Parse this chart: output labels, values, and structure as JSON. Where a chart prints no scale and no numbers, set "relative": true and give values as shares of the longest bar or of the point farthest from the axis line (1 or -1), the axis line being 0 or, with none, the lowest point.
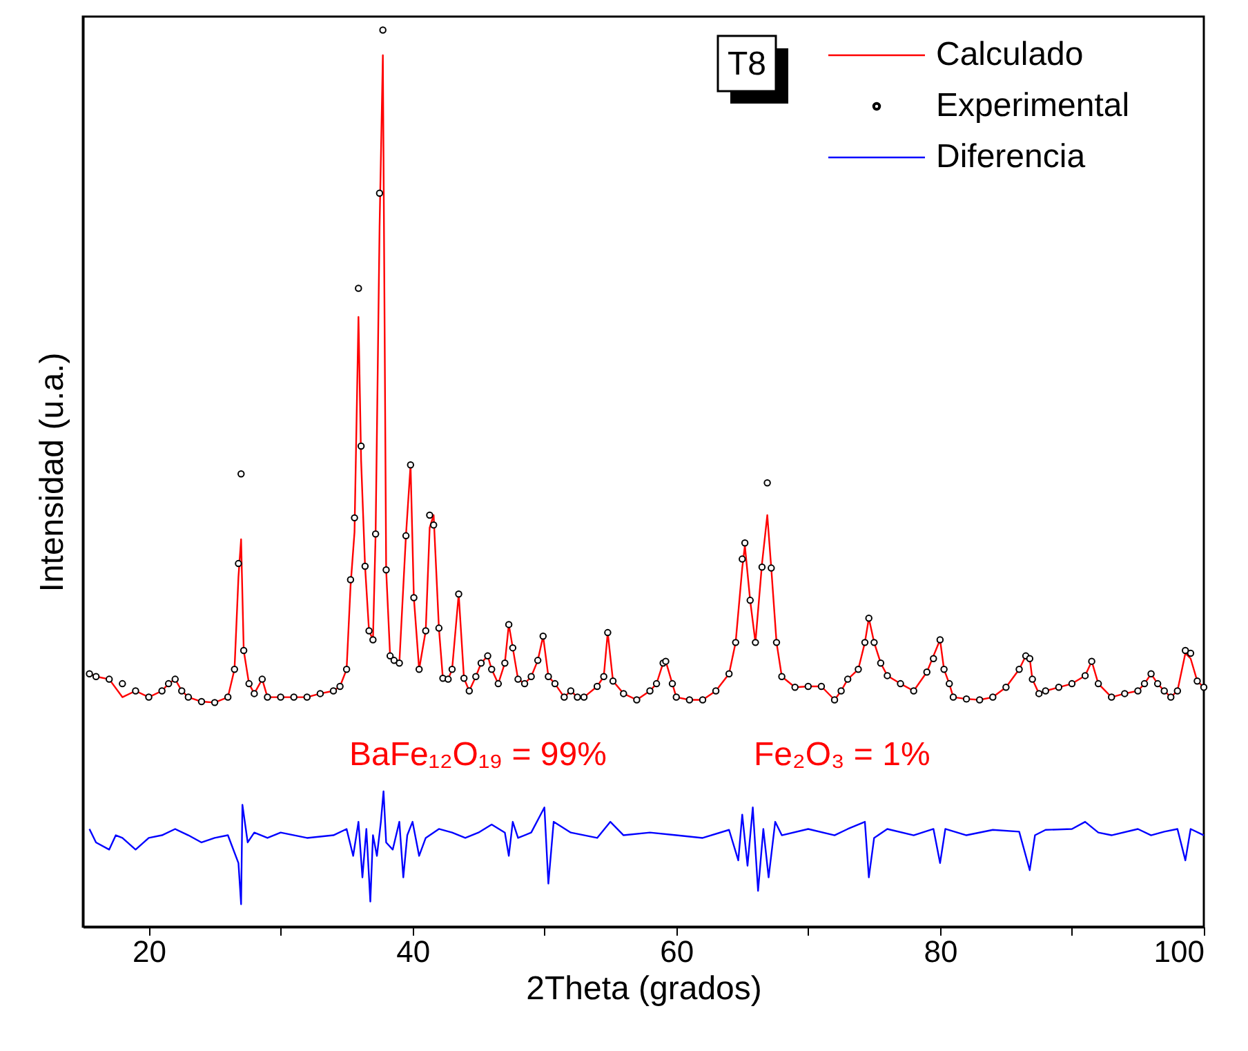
{
  "chart_data": {
    "type": "line",
    "relative": true,
    "xlabel": "2Theta (grados)",
    "ylabel": "Intensidad (u.a.)",
    "xlim": [
      15,
      100
    ],
    "xticks": [
      20,
      {
        "value": 30,
        "label": null
      },
      40,
      {
        "value": 50,
        "label": null
      },
      60,
      {
        "value": 70,
        "label": null
      },
      80,
      {
        "value": 90,
        "label": null
      },
      100
    ],
    "grid": false,
    "legend": "top right",
    "tick_labels": "x",
    "annotations": [
      "T8",
      "BaFe₁₂O₁₉ = 99%",
      "Fe₂O₃ = 1%"
    ],
    "series": [
      {
        "name": "Calculado",
        "type": "line",
        "color": "#ff0000",
        "x": [
          15.5,
          16,
          17,
          18,
          19,
          20,
          21,
          21.5,
          22,
          22.5,
          23,
          24,
          25,
          26,
          26.5,
          26.8,
          27,
          27.2,
          27.6,
          28,
          28.6,
          29,
          30,
          31,
          32,
          33,
          34,
          34.5,
          35,
          35.3,
          35.6,
          35.9,
          36.1,
          36.4,
          36.7,
          37,
          37.2,
          37.5,
          37.75,
          38,
          38.3,
          38.6,
          39,
          39.5,
          39.85,
          40.1,
          40.5,
          41,
          41.3,
          41.6,
          42,
          42.3,
          42.7,
          43,
          43.5,
          43.9,
          44.3,
          44.8,
          45.2,
          45.7,
          46,
          46.5,
          47,
          47.3,
          47.6,
          48,
          48.5,
          49,
          49.5,
          49.9,
          50.3,
          50.8,
          51.5,
          52,
          52.5,
          53,
          54,
          54.5,
          54.8,
          55.2,
          56,
          57,
          58,
          58.5,
          59,
          59.2,
          59.7,
          60,
          61,
          62,
          63,
          64,
          64.5,
          65,
          65.2,
          65.6,
          66,
          66.5,
          66.9,
          67.2,
          67.6,
          68,
          69,
          70,
          71,
          72,
          72.5,
          73,
          73.8,
          74.3,
          74.6,
          75,
          75.5,
          76,
          77,
          78,
          79,
          79.5,
          80,
          80.3,
          80.7,
          81,
          82,
          83,
          84,
          85,
          86,
          86.5,
          86.8,
          87,
          87.5,
          88,
          89,
          90,
          91,
          91.5,
          92,
          93,
          94,
          95,
          95.5,
          96,
          96.5,
          97,
          97.5,
          98,
          98.6,
          99,
          99.5,
          100
        ],
        "values": [
          0.282,
          0.279,
          0.276,
          0.256,
          0.263,
          0.256,
          0.263,
          0.271,
          0.276,
          0.263,
          0.256,
          0.251,
          0.25,
          0.256,
          0.287,
          0.39,
          0.432,
          0.308,
          0.271,
          0.26,
          0.276,
          0.256,
          0.256,
          0.256,
          0.256,
          0.26,
          0.263,
          0.268,
          0.287,
          0.38,
          0.44,
          0.68,
          0.52,
          0.402,
          0.33,
          0.32,
          0.438,
          0.78,
          0.972,
          0.398,
          0.302,
          0.297,
          0.294,
          0.436,
          0.515,
          0.367,
          0.287,
          0.33,
          0.445,
          0.459,
          0.333,
          0.277,
          0.276,
          0.287,
          0.371,
          0.277,
          0.263,
          0.279,
          0.294,
          0.302,
          0.287,
          0.271,
          0.294,
          0.337,
          0.311,
          0.276,
          0.271,
          0.279,
          0.297,
          0.324,
          0.279,
          0.271,
          0.256,
          0.263,
          0.256,
          0.256,
          0.268,
          0.279,
          0.328,
          0.274,
          0.26,
          0.253,
          0.263,
          0.271,
          0.294,
          0.296,
          0.271,
          0.256,
          0.253,
          0.253,
          0.263,
          0.282,
          0.317,
          0.4,
          0.425,
          0.364,
          0.317,
          0.405,
          0.459,
          0.4,
          0.317,
          0.279,
          0.267,
          0.268,
          0.268,
          0.253,
          0.263,
          0.276,
          0.287,
          0.317,
          0.344,
          0.317,
          0.294,
          0.28,
          0.271,
          0.263,
          0.284,
          0.302,
          0.32,
          0.287,
          0.271,
          0.256,
          0.254,
          0.253,
          0.256,
          0.267,
          0.287,
          0.302,
          0.299,
          0.276,
          0.26,
          0.263,
          0.267,
          0.271,
          0.28,
          0.296,
          0.271,
          0.256,
          0.26,
          0.263,
          0.271,
          0.282,
          0.271,
          0.263,
          0.256,
          0.263,
          0.305,
          0.299,
          0.274,
          0.267
        ]
      },
      {
        "name": "Experimental",
        "type": "scatter",
        "color": "#000000",
        "marker": "circle",
        "x": [
          15.5,
          16,
          17,
          18,
          19,
          20,
          21,
          21.5,
          22,
          22.5,
          23,
          24,
          25,
          26,
          26.5,
          26.8,
          27,
          27.2,
          27.6,
          28,
          28.6,
          29,
          30,
          31,
          32,
          33,
          34,
          34.5,
          35,
          35.3,
          35.6,
          35.9,
          36.1,
          36.4,
          36.7,
          37,
          37.2,
          37.5,
          37.75,
          38,
          38.3,
          38.6,
          39,
          39.5,
          39.85,
          40.1,
          40.5,
          41,
          41.3,
          41.6,
          42,
          42.3,
          42.7,
          43,
          43.5,
          43.9,
          44.3,
          44.8,
          45.2,
          45.7,
          46,
          46.5,
          47,
          47.3,
          47.6,
          48,
          48.5,
          49,
          49.5,
          49.9,
          50.3,
          50.8,
          51.5,
          52,
          52.5,
          53,
          54,
          54.5,
          54.8,
          55.2,
          56,
          57,
          58,
          58.5,
          59,
          59.2,
          59.7,
          60,
          61,
          62,
          63,
          64,
          64.5,
          65,
          65.2,
          65.6,
          66,
          66.5,
          66.9,
          67.2,
          67.6,
          68,
          69,
          70,
          71,
          72,
          72.5,
          73,
          73.8,
          74.3,
          74.6,
          75,
          75.5,
          76,
          77,
          78,
          79,
          79.5,
          80,
          80.3,
          80.7,
          81,
          82,
          83,
          84,
          85,
          86,
          86.5,
          86.8,
          87,
          87.5,
          88,
          89,
          90,
          91,
          91.5,
          92,
          93,
          94,
          95,
          95.5,
          96,
          96.5,
          97,
          97.5,
          98,
          98.6,
          99,
          99.5,
          100
        ],
        "values": [
          0.282,
          0.279,
          0.276,
          0.271,
          0.263,
          0.256,
          0.263,
          0.271,
          0.276,
          0.263,
          0.256,
          0.251,
          0.25,
          0.256,
          0.287,
          0.405,
          0.505,
          0.308,
          0.271,
          0.26,
          0.276,
          0.256,
          0.256,
          0.256,
          0.256,
          0.26,
          0.263,
          0.268,
          0.287,
          0.387,
          0.456,
          0.712,
          0.536,
          0.402,
          0.33,
          0.32,
          0.438,
          0.818,
          1.0,
          0.398,
          0.302,
          0.297,
          0.294,
          0.436,
          0.515,
          0.367,
          0.287,
          0.33,
          0.459,
          0.448,
          0.333,
          0.277,
          0.276,
          0.287,
          0.371,
          0.277,
          0.263,
          0.279,
          0.294,
          0.302,
          0.287,
          0.271,
          0.294,
          0.337,
          0.311,
          0.276,
          0.271,
          0.279,
          0.297,
          0.324,
          0.279,
          0.271,
          0.256,
          0.263,
          0.256,
          0.256,
          0.268,
          0.279,
          0.328,
          0.274,
          0.26,
          0.253,
          0.263,
          0.271,
          0.294,
          0.296,
          0.271,
          0.256,
          0.253,
          0.253,
          0.263,
          0.282,
          0.317,
          0.41,
          0.428,
          0.364,
          0.317,
          0.401,
          0.495,
          0.4,
          0.317,
          0.279,
          0.267,
          0.268,
          0.268,
          0.253,
          0.263,
          0.276,
          0.287,
          0.317,
          0.344,
          0.317,
          0.294,
          0.28,
          0.271,
          0.263,
          0.284,
          0.299,
          0.32,
          0.287,
          0.271,
          0.256,
          0.254,
          0.253,
          0.256,
          0.267,
          0.287,
          0.302,
          0.299,
          0.276,
          0.26,
          0.263,
          0.267,
          0.271,
          0.28,
          0.296,
          0.271,
          0.256,
          0.26,
          0.263,
          0.271,
          0.282,
          0.271,
          0.263,
          0.256,
          0.263,
          0.308,
          0.305,
          0.274,
          0.267
        ]
      },
      {
        "name": "Diferencia",
        "type": "line",
        "color": "#0000ff",
        "x": [
          15.5,
          16,
          17,
          17.5,
          18,
          19,
          20,
          21,
          22,
          23,
          24,
          25,
          26,
          26.8,
          27,
          27.1,
          27.5,
          28,
          29,
          30,
          32,
          34,
          35,
          35.5,
          35.9,
          36.2,
          36.5,
          36.8,
          37,
          37.3,
          37.6,
          37.8,
          38,
          38.5,
          39,
          39.3,
          39.6,
          40,
          40.5,
          41,
          42,
          43,
          44,
          45,
          46,
          47,
          47.3,
          47.6,
          48,
          49,
          50,
          50.3,
          50.7,
          52,
          54,
          55,
          56,
          58,
          60,
          62,
          64,
          64.7,
          65,
          65.4,
          65.8,
          66.2,
          66.6,
          67,
          67.5,
          68,
          70,
          72,
          73,
          74.3,
          74.6,
          75,
          76,
          78,
          79.5,
          80,
          80.4,
          82,
          84,
          86,
          86.8,
          87.2,
          88,
          90,
          91,
          92,
          93,
          95,
          96,
          97,
          98,
          98.6,
          99,
          100
        ],
        "values": [
          0.109,
          0.094,
          0.086,
          0.102,
          0.099,
          0.086,
          0.099,
          0.102,
          0.109,
          0.102,
          0.094,
          0.099,
          0.102,
          0.071,
          0.025,
          0.136,
          0.094,
          0.105,
          0.099,
          0.105,
          0.099,
          0.102,
          0.109,
          0.079,
          0.117,
          0.055,
          0.109,
          0.028,
          0.102,
          0.079,
          0.117,
          0.151,
          0.094,
          0.086,
          0.117,
          0.055,
          0.102,
          0.117,
          0.079,
          0.099,
          0.109,
          0.105,
          0.099,
          0.105,
          0.114,
          0.105,
          0.079,
          0.117,
          0.099,
          0.105,
          0.133,
          0.048,
          0.117,
          0.105,
          0.099,
          0.117,
          0.102,
          0.105,
          0.102,
          0.099,
          0.108,
          0.074,
          0.125,
          0.068,
          0.133,
          0.04,
          0.109,
          0.055,
          0.117,
          0.102,
          0.109,
          0.102,
          0.109,
          0.117,
          0.055,
          0.099,
          0.109,
          0.102,
          0.109,
          0.071,
          0.109,
          0.102,
          0.108,
          0.106,
          0.063,
          0.102,
          0.108,
          0.109,
          0.117,
          0.105,
          0.102,
          0.109,
          0.102,
          0.106,
          0.109,
          0.074,
          0.109,
          0.102
        ]
      }
    ]
  }
}
